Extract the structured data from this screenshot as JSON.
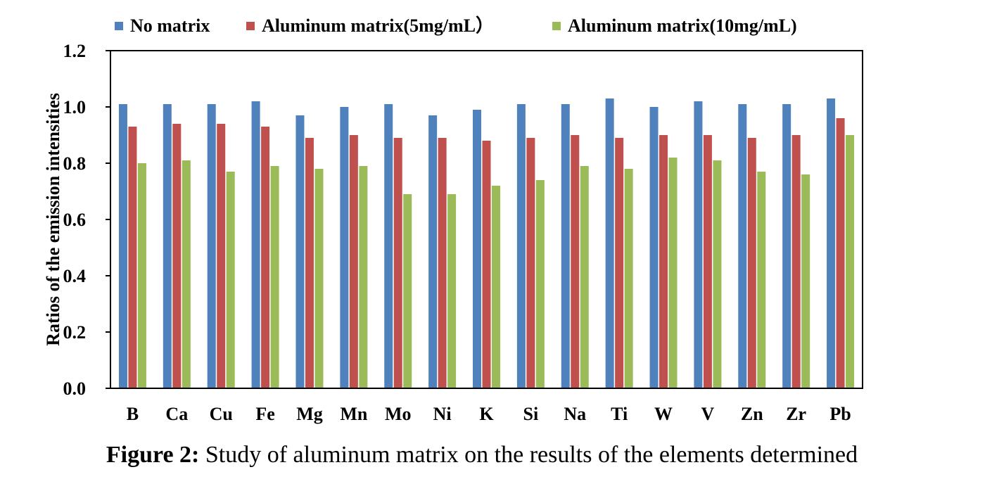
{
  "chart_data": {
    "type": "bar",
    "ylabel": "Ratios of the emission intensities",
    "xlabel": "",
    "ylim": [
      0,
      1.2
    ],
    "yticks": [
      "0.0",
      "0.2",
      "0.4",
      "0.6",
      "0.8",
      "1.0",
      "1.2"
    ],
    "grid": false,
    "legend_position": "top",
    "categories": [
      "B",
      "Ca",
      "Cu",
      "Fe",
      "Mg",
      "Mn",
      "Mo",
      "Ni",
      "K",
      "Si",
      "Na",
      "Ti",
      "W",
      "V",
      "Zn",
      "Zr",
      "Pb"
    ],
    "series": [
      {
        "name": "No matrix",
        "color": "#4f81bd",
        "values": [
          1.01,
          1.01,
          1.01,
          1.02,
          0.97,
          1.0,
          1.01,
          0.97,
          0.99,
          1.01,
          1.01,
          1.03,
          1.0,
          1.02,
          1.01,
          1.01,
          1.03
        ]
      },
      {
        "name": "Aluminum matrix(5mg/mL）",
        "color": "#c0504d",
        "values": [
          0.93,
          0.94,
          0.94,
          0.93,
          0.89,
          0.9,
          0.89,
          0.89,
          0.88,
          0.89,
          0.9,
          0.89,
          0.9,
          0.9,
          0.89,
          0.9,
          0.96
        ]
      },
      {
        "name": "Aluminum matrix(10mg/mL)",
        "color": "#9bbb59",
        "values": [
          0.8,
          0.81,
          0.77,
          0.79,
          0.78,
          0.79,
          0.69,
          0.69,
          0.72,
          0.74,
          0.79,
          0.78,
          0.82,
          0.81,
          0.77,
          0.76,
          0.9
        ]
      }
    ]
  },
  "caption": {
    "label": "Figure 2:",
    "text": " Study of aluminum matrix on the results of the elements determined"
  }
}
